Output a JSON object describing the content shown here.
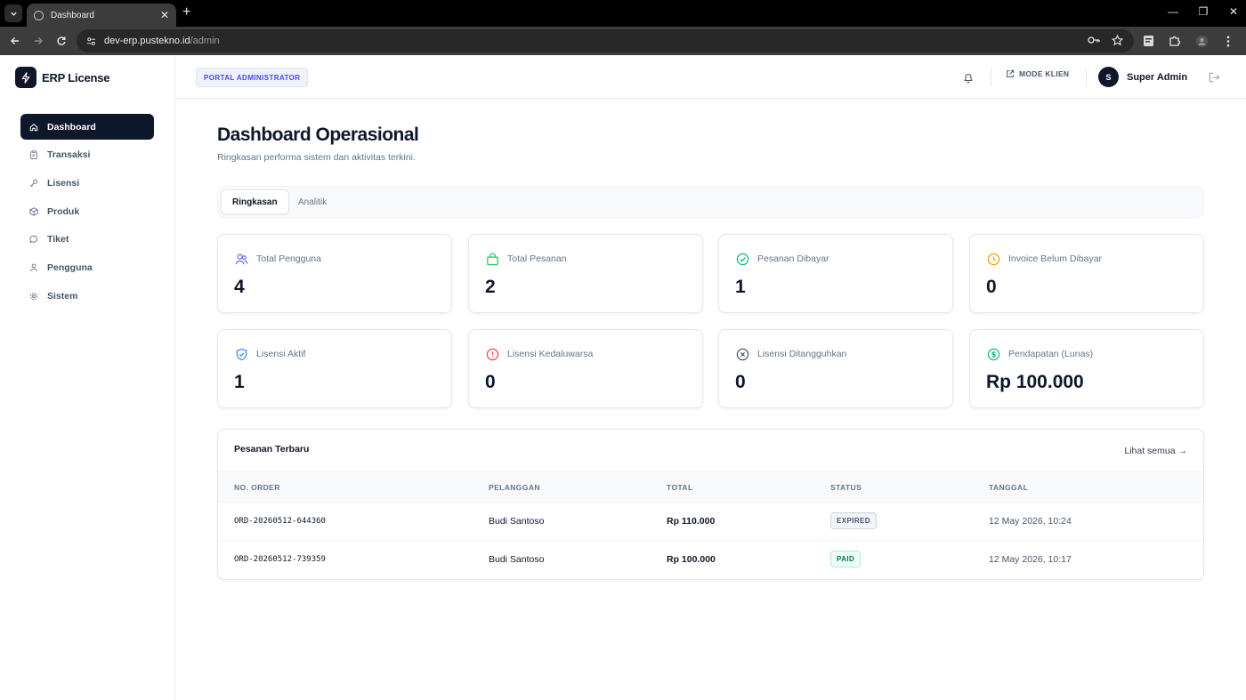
{
  "browser": {
    "tab_title": "Dashboard",
    "url_host": "dev-erp.pustekno.id",
    "url_path": "/admin",
    "window_controls": [
      "—",
      "❐",
      "✕"
    ]
  },
  "app": {
    "brand_name": "ERP License",
    "portal_badge": "PORTAL ADMINISTRATOR",
    "mode_klien": "MODE KLIEN",
    "user_initial": "S",
    "user_name": "Super Admin"
  },
  "sidebar": {
    "items": [
      {
        "label": "Dashboard",
        "icon": "home-icon",
        "active": true
      },
      {
        "label": "Transaksi",
        "icon": "clipboard-icon",
        "active": false
      },
      {
        "label": "Lisensi",
        "icon": "key-icon",
        "active": false
      },
      {
        "label": "Produk",
        "icon": "box-icon",
        "active": false
      },
      {
        "label": "Tiket",
        "icon": "chat-icon",
        "active": false
      },
      {
        "label": "Pengguna",
        "icon": "users-icon",
        "active": false
      },
      {
        "label": "Sistem",
        "icon": "gear-icon",
        "active": false
      }
    ]
  },
  "page": {
    "title": "Dashboard Operasional",
    "subtitle": "Ringkasan performa sistem dan aktivitas terkini.",
    "tabs": [
      {
        "label": "Ringkasan",
        "active": true
      },
      {
        "label": "Analitik",
        "active": false
      }
    ]
  },
  "stats": [
    {
      "label": "Total Pengguna",
      "value": "4",
      "icon": "users-icon",
      "color": "#6366f1"
    },
    {
      "label": "Total Pesanan",
      "value": "2",
      "icon": "shopping-bag-icon",
      "color": "#22c55e"
    },
    {
      "label": "Pesanan Dibayar",
      "value": "1",
      "icon": "check-circle-icon",
      "color": "#10b981"
    },
    {
      "label": "Invoice Belum Dibayar",
      "value": "0",
      "icon": "clock-icon",
      "color": "#f59e0b"
    },
    {
      "label": "Lisensi Aktif",
      "value": "1",
      "icon": "shield-check-icon",
      "color": "#3b82f6"
    },
    {
      "label": "Lisensi Kedaluwarsa",
      "value": "0",
      "icon": "alert-circle-icon",
      "color": "#ef4444"
    },
    {
      "label": "Lisensi Ditangguhkan",
      "value": "0",
      "icon": "x-circle-icon",
      "color": "#475569"
    },
    {
      "label": "Pendapatan (Lunas)",
      "value": "Rp 100.000",
      "icon": "dollar-circle-icon",
      "color": "#10b981"
    }
  ],
  "orders": {
    "title": "Pesanan Terbaru",
    "see_all": "Lihat semua →",
    "columns": [
      "NO. ORDER",
      "PELANGGAN",
      "TOTAL",
      "STATUS",
      "TANGGAL"
    ],
    "rows": [
      {
        "order_no": "ORD-20260512-644360",
        "customer": "Budi Santoso",
        "total": "Rp 110.000",
        "status": "EXPIRED",
        "date": "12 May 2026, 10:24"
      },
      {
        "order_no": "ORD-20260512-739359",
        "customer": "Budi Santoso",
        "total": "Rp 100.000",
        "status": "PAID",
        "date": "12 May 2026, 10:17"
      }
    ]
  }
}
